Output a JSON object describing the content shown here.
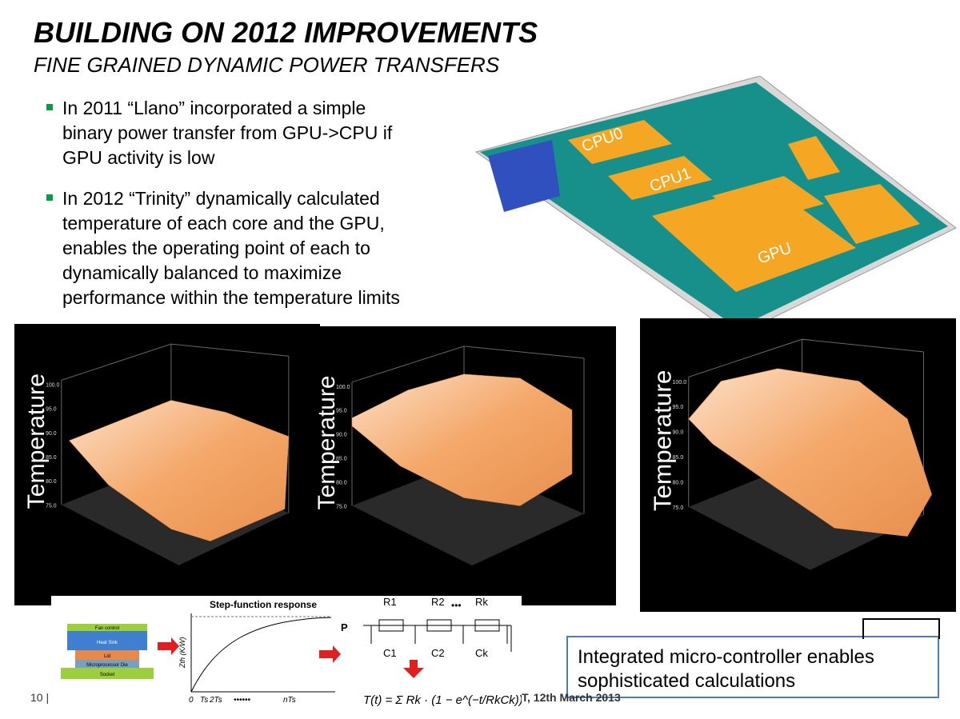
{
  "title": "BUILDING ON 2012 IMPROVEMENTS",
  "subtitle": "FINE GRAINED DYNAMIC POWER TRANSFERS",
  "bullets": [
    [
      "In 2011 “Llano” incorporated a simple",
      "binary power transfer from GPU->CPU if",
      "GPU activity is low"
    ],
    [
      "In 2012 “Trinity” dynamically calculated",
      "temperature of each core and the GPU,",
      "enables the operating point of each to",
      "dynamically balanced to maximize",
      "performance within the temperature limits"
    ]
  ],
  "die_labels": [
    "CPU0",
    "CPU1",
    "GPU"
  ],
  "plots": [
    {
      "axis_label": "Temperature",
      "ticks": [
        "100.0",
        "95.0",
        "90.0",
        "85.0",
        "80.0",
        "75.0"
      ]
    },
    {
      "axis_label": "Temperature",
      "ticks": [
        "100.0",
        "95.0",
        "90.0",
        "85.0",
        "80.0",
        "75.0"
      ]
    },
    {
      "axis_label": "Temperature",
      "ticks": [
        "100.0",
        "95.0",
        "90.0",
        "85.0",
        "80.0",
        "75.0"
      ]
    }
  ],
  "diagram": {
    "layers": [
      "Fan control",
      "Heat Sink",
      "Lid",
      "Microprocessor Die",
      "Socket"
    ],
    "graph_title": "Step-function response",
    "y_label": "Zth (K/W)",
    "x_labels": [
      "0",
      "Ts",
      "2Ts",
      "••••••",
      "nTs"
    ],
    "resistors": [
      "R1",
      "R2",
      "Rk"
    ],
    "capacitors": [
      "C1",
      "C2",
      "Ck"
    ],
    "dots": "•••",
    "input": "P",
    "formula": "T(t) = Σ Rk · (1 − e^(−t/RkCk))"
  },
  "callout": [
    "Integrated micro-controller enables",
    "sophisticated calculations"
  ],
  "footer": {
    "page": "10 |",
    "event": "T, 12th March 2013"
  }
}
